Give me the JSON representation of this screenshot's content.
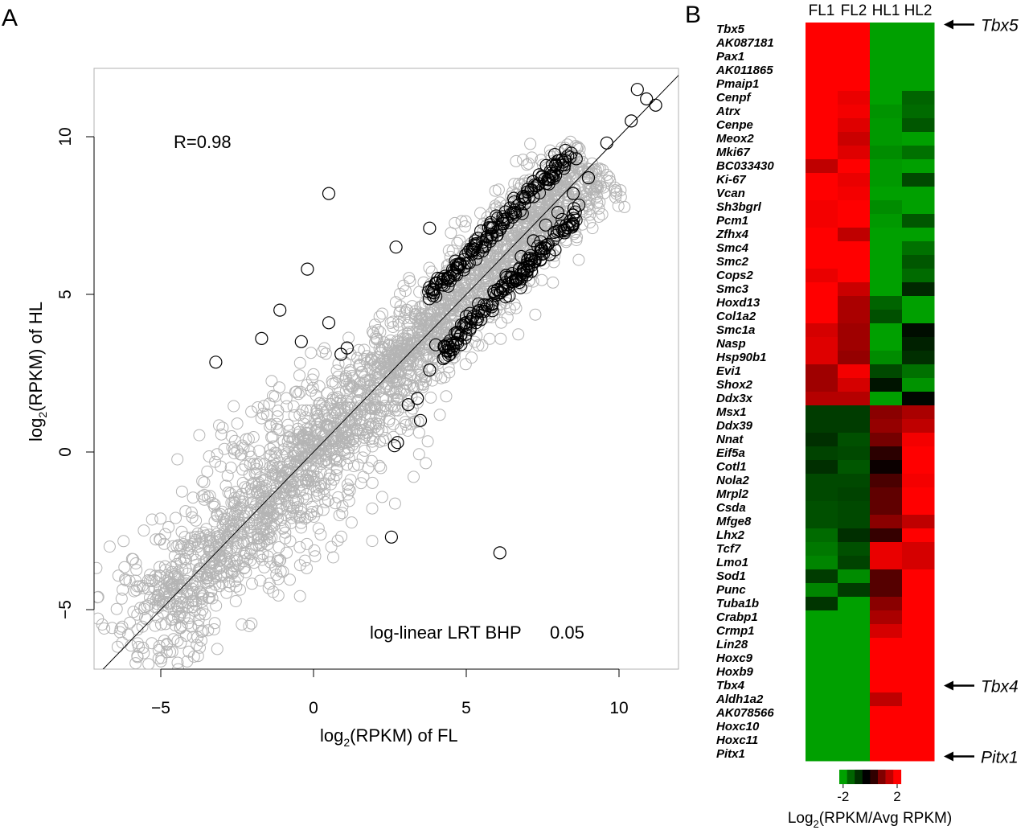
{
  "chart_data": [
    {
      "panel": "A",
      "type": "scatter",
      "xlabel_main": "log",
      "xlabel_sub": "2",
      "xlabel_tail": "(RPKM) of FL",
      "ylabel_main": "log",
      "ylabel_sub": "2",
      "ylabel_tail": "(RPKM) of HL",
      "xlim": [
        -7,
        12
      ],
      "ylim": [
        -7,
        12
      ],
      "xticks": [
        -5,
        0,
        5,
        10
      ],
      "xtick_labels": [
        "−5",
        "0",
        "5",
        "10"
      ],
      "yticks": [
        -5,
        0,
        5,
        10
      ],
      "ytick_labels": [
        "−5",
        "0",
        "5",
        "10"
      ],
      "annotation_r": "R=0.98",
      "annotation_test": "log-linear LRT BHP",
      "annotation_threshold": "0.05",
      "reference_line": {
        "slope": 1,
        "intercept": 0
      },
      "series": [
        {
          "role": "not significant",
          "color": "#b4b4b4",
          "cloud_extent": {
            "x": [
              -6.5,
              10.5
            ],
            "y": [
              -6.2,
              9.5
            ]
          }
        },
        {
          "role": "significant",
          "color": "#000000",
          "points": [
            [
              -3.2,
              2.85
            ],
            [
              -1.7,
              3.6
            ],
            [
              -1.1,
              4.5
            ],
            [
              -0.4,
              3.5
            ],
            [
              -0.2,
              5.8
            ],
            [
              0.5,
              4.1
            ],
            [
              0.5,
              8.2
            ],
            [
              0.9,
              3.1
            ],
            [
              1.1,
              3.3
            ],
            [
              2.55,
              -2.7
            ],
            [
              6.1,
              -3.2
            ],
            [
              2.75,
              0.3
            ],
            [
              2.65,
              0.2
            ],
            [
              2.7,
              6.5
            ],
            [
              3.1,
              1.5
            ],
            [
              3.4,
              1.7
            ],
            [
              3.8,
              7.1
            ],
            [
              3.5,
              1.0
            ],
            [
              10.6,
              11.5
            ],
            [
              10.9,
              11.2
            ],
            [
              11.2,
              11.0
            ],
            [
              10.4,
              10.5
            ],
            [
              9.6,
              9.8
            ],
            [
              4.2,
              5.3
            ],
            [
              4.6,
              5.6
            ],
            [
              5.1,
              6.0
            ],
            [
              5.6,
              6.5
            ],
            [
              6.0,
              7.0
            ],
            [
              6.6,
              7.6
            ],
            [
              7.2,
              8.1
            ],
            [
              7.7,
              8.5
            ],
            [
              8.2,
              9.0
            ],
            [
              8.6,
              9.3
            ],
            [
              4.0,
              3.4
            ],
            [
              4.3,
              3.0
            ],
            [
              4.7,
              3.8
            ],
            [
              5.0,
              4.3
            ],
            [
              5.4,
              4.7
            ],
            [
              5.9,
              5.1
            ],
            [
              6.3,
              5.6
            ],
            [
              6.8,
              6.2
            ],
            [
              7.2,
              6.7
            ],
            [
              7.6,
              7.2
            ],
            [
              8.0,
              7.6
            ],
            [
              8.5,
              8.2
            ],
            [
              9.0,
              8.7
            ],
            [
              3.8,
              2.6
            ]
          ]
        }
      ]
    },
    {
      "panel": "B",
      "type": "heatmap",
      "columns": [
        "FL1",
        "FL2",
        "HL1",
        "HL2"
      ],
      "rows": [
        "Tbx5",
        "AK087181",
        "Pax1",
        "AK011865",
        "Pmaip1",
        "Cenpf",
        "Atrx",
        "Cenpe",
        "Meox2",
        "Mki67",
        "BC033430",
        "Ki-67",
        "Vcan",
        "Sh3bgrl",
        "Pcm1",
        "Zfhx4",
        "Smc4",
        "Smc2",
        "Cops2",
        "Smc3",
        "Hoxd13",
        "Col1a2",
        "Smc1a",
        "Nasp",
        "Hsp90b1",
        "Evi1",
        "Shox2",
        "Ddx3x",
        "Msx1",
        "Ddx39",
        "Nnat",
        "Eif5a",
        "Cotl1",
        "Nola2",
        "Mrpl2",
        "Csda",
        "Mfge8",
        "Lhx2",
        "Tcf7",
        "Lmo1",
        "Sod1",
        "Punc",
        "Tuba1b",
        "Crabp1",
        "Crmp1",
        "Lin28",
        "Hoxc9",
        "Hoxb9",
        "Tbx4",
        "Aldh1a2",
        "AK078566",
        "Hoxc10",
        "Hoxc11",
        "Pitx1"
      ],
      "values": [
        [
          2.4,
          2.4,
          -2.4,
          -2.4
        ],
        [
          2.4,
          2.4,
          -2.4,
          -2.4
        ],
        [
          2.4,
          2.4,
          -2.4,
          -2.4
        ],
        [
          2.4,
          2.4,
          -2.4,
          -2.4
        ],
        [
          2.4,
          2.4,
          -2.4,
          -2.4
        ],
        [
          2.4,
          2.2,
          -2.4,
          -1.5
        ],
        [
          2.4,
          2.3,
          -2.2,
          -1.6
        ],
        [
          2.4,
          2.1,
          -2.3,
          -1.3
        ],
        [
          2.4,
          1.9,
          -2.3,
          -2.4
        ],
        [
          2.4,
          2.1,
          -2.1,
          -1.7
        ],
        [
          1.8,
          2.4,
          -2.3,
          -2.4
        ],
        [
          2.4,
          2.2,
          -2.3,
          -1.1
        ],
        [
          2.4,
          2.3,
          -2.4,
          -2.4
        ],
        [
          2.3,
          2.4,
          -2.1,
          -2.4
        ],
        [
          2.3,
          2.4,
          -2.3,
          -1.3
        ],
        [
          2.4,
          1.8,
          -2.4,
          -2.4
        ],
        [
          2.4,
          2.4,
          -2.4,
          -1.7
        ],
        [
          2.4,
          2.4,
          -2.4,
          -1.3
        ],
        [
          2.2,
          2.4,
          -2.4,
          -1.6
        ],
        [
          2.4,
          1.9,
          -2.4,
          -0.6
        ],
        [
          2.4,
          1.6,
          -1.5,
          -2.4
        ],
        [
          2.4,
          1.6,
          -1.2,
          -2.4
        ],
        [
          2.0,
          1.5,
          -2.4,
          -0.2
        ],
        [
          2.1,
          1.5,
          -2.4,
          -0.5
        ],
        [
          2.1,
          1.4,
          -2.1,
          -0.7
        ],
        [
          1.5,
          2.3,
          -1.1,
          -1.7
        ],
        [
          1.5,
          2.0,
          -0.3,
          -2.2
        ],
        [
          1.7,
          1.7,
          -2.4,
          -0.1
        ],
        [
          -0.9,
          -0.9,
          1.3,
          1.6
        ],
        [
          -0.9,
          -0.9,
          1.4,
          1.8
        ],
        [
          -0.7,
          -1.2,
          1.1,
          2.3
        ],
        [
          -1.0,
          -1.1,
          0.4,
          2.4
        ],
        [
          -0.7,
          -1.3,
          0.1,
          2.4
        ],
        [
          -1.1,
          -1.1,
          0.7,
          2.3
        ],
        [
          -1.1,
          -1.0,
          0.9,
          2.4
        ],
        [
          -1.2,
          -1.1,
          0.9,
          2.4
        ],
        [
          -1.2,
          -1.1,
          1.3,
          1.8
        ],
        [
          -1.6,
          -0.7,
          0.5,
          2.4
        ],
        [
          -1.8,
          -1.2,
          2.2,
          2.0
        ],
        [
          -2.0,
          -1.0,
          2.2,
          2.0
        ],
        [
          -0.9,
          -2.1,
          0.8,
          2.4
        ],
        [
          -2.0,
          -0.9,
          0.8,
          2.4
        ],
        [
          -0.8,
          -2.4,
          1.3,
          2.4
        ],
        [
          -2.4,
          -2.4,
          1.6,
          2.4
        ],
        [
          -2.4,
          -2.4,
          2.0,
          2.4
        ],
        [
          -2.4,
          -2.4,
          2.4,
          2.4
        ],
        [
          -2.4,
          -2.4,
          2.4,
          2.4
        ],
        [
          -2.4,
          -2.4,
          2.4,
          2.4
        ],
        [
          -2.4,
          -2.4,
          2.4,
          2.4
        ],
        [
          -2.4,
          -2.4,
          1.8,
          2.4
        ],
        [
          -2.4,
          -2.4,
          2.4,
          2.4
        ],
        [
          -2.4,
          -2.4,
          2.4,
          2.4
        ],
        [
          -2.4,
          -2.4,
          2.4,
          2.4
        ],
        [
          -2.4,
          -2.4,
          2.4,
          2.4
        ]
      ],
      "callouts": [
        {
          "label": "Tbx5",
          "row": "Tbx5"
        },
        {
          "label": "Tbx4",
          "row": "Tbx4"
        },
        {
          "label": "Pitx1",
          "row": "Pitx1"
        }
      ],
      "colorbar": {
        "low_color": "#00a000",
        "mid_color": "#000000",
        "high_color": "#ff0000",
        "steps": [
          "#00a000",
          "#006400",
          "#003000",
          "#000000",
          "#300000",
          "#800000",
          "#c00000",
          "#ff0000"
        ],
        "tick_labels": [
          "-2",
          "2"
        ],
        "title_main": "Log",
        "title_sub": "2",
        "title_tail": "(RPKM/Avg RPKM)"
      }
    }
  ]
}
